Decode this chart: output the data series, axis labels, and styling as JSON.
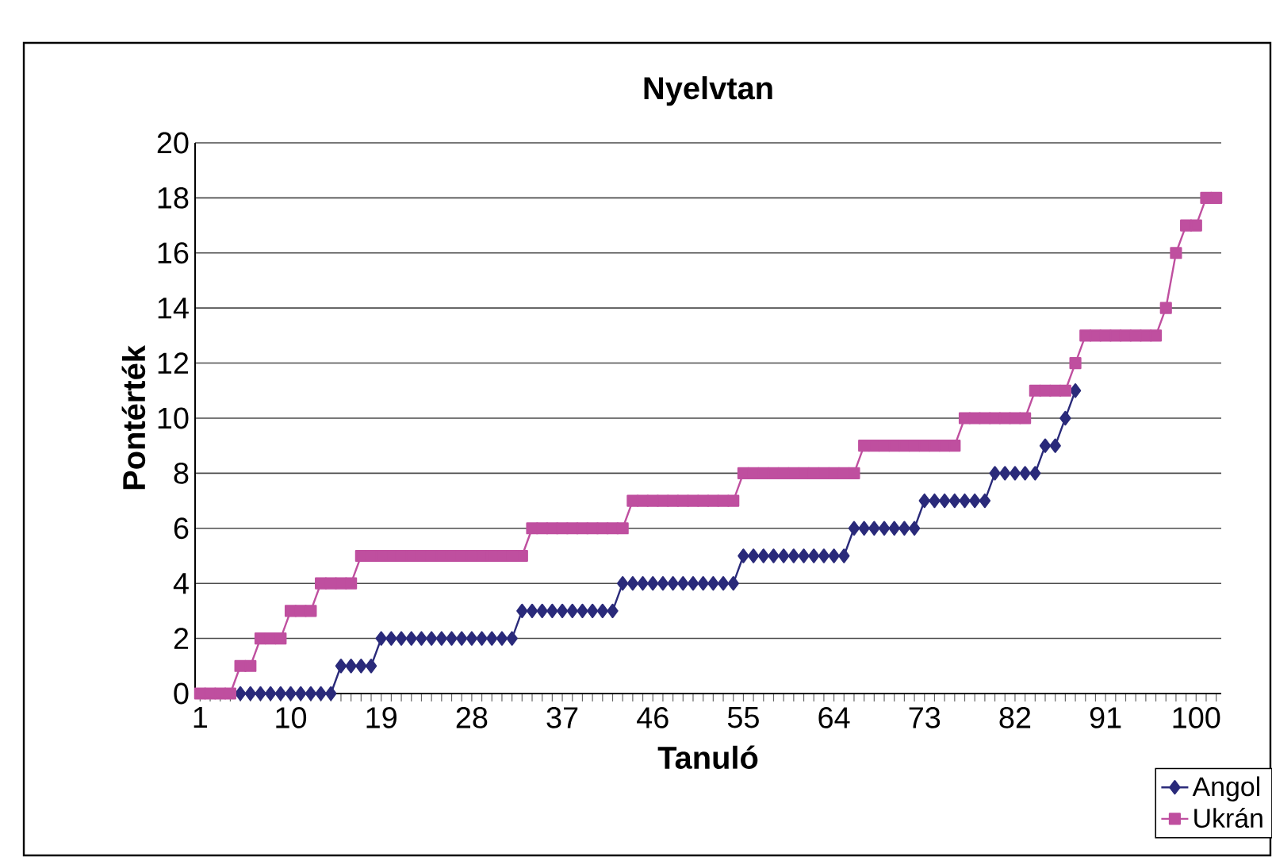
{
  "chart_data": {
    "type": "line",
    "title": "Nyelvtan",
    "xlabel": "Tanuló",
    "ylabel": "Pontérték",
    "categories": [
      "1",
      null,
      null,
      null,
      null,
      null,
      null,
      null,
      null,
      "10",
      null,
      null,
      null,
      null,
      null,
      null,
      null,
      null,
      "19",
      null,
      null,
      null,
      null,
      null,
      null,
      null,
      null,
      "28",
      null,
      null,
      null,
      null,
      null,
      null,
      null,
      null,
      "37",
      null,
      null,
      null,
      null,
      null,
      null,
      null,
      null,
      "46",
      null,
      null,
      null,
      null,
      null,
      null,
      null,
      null,
      "55",
      null,
      null,
      null,
      null,
      null,
      null,
      null,
      null,
      "64",
      null,
      null,
      null,
      null,
      null,
      null,
      null,
      null,
      "73",
      null,
      null,
      null,
      null,
      null,
      null,
      null,
      null,
      "82",
      null,
      null,
      null,
      null,
      null,
      null,
      null,
      null,
      "91",
      null,
      null,
      null,
      null,
      null,
      null,
      null,
      null,
      "100",
      null,
      null
    ],
    "ylim": [
      0,
      20
    ],
    "yticks": [
      0,
      2,
      4,
      6,
      8,
      10,
      12,
      14,
      16,
      18,
      20
    ],
    "grid": "y",
    "legend": "bottom right",
    "line_style": "solid",
    "series": [
      {
        "name": "Angol",
        "color": "#2a2a7a",
        "marker": "diamond",
        "values": [
          null,
          null,
          null,
          null,
          0,
          0,
          0,
          0,
          0,
          0,
          0,
          0,
          0,
          0,
          1,
          1,
          1,
          1,
          2,
          2,
          2,
          2,
          2,
          2,
          2,
          2,
          2,
          2,
          2,
          2,
          2,
          2,
          3,
          3,
          3,
          3,
          3,
          3,
          3,
          3,
          3,
          3,
          4,
          4,
          4,
          4,
          4,
          4,
          4,
          4,
          4,
          4,
          4,
          4,
          5,
          5,
          5,
          5,
          5,
          5,
          5,
          5,
          5,
          5,
          5,
          6,
          6,
          6,
          6,
          6,
          6,
          6,
          7,
          7,
          7,
          7,
          7,
          7,
          7,
          8,
          8,
          8,
          8,
          8,
          9,
          9,
          10,
          11,
          null,
          null,
          null,
          null,
          null,
          null,
          null,
          null,
          null,
          null,
          null,
          null,
          null,
          null
        ]
      },
      {
        "name": "Ukrán",
        "color": "#bf4f9f",
        "marker": "square",
        "values": [
          0,
          0,
          0,
          0,
          1,
          1,
          2,
          2,
          2,
          3,
          3,
          3,
          4,
          4,
          4,
          4,
          5,
          5,
          5,
          5,
          5,
          5,
          5,
          5,
          5,
          5,
          5,
          5,
          5,
          5,
          5,
          5,
          5,
          6,
          6,
          6,
          6,
          6,
          6,
          6,
          6,
          6,
          6,
          7,
          7,
          7,
          7,
          7,
          7,
          7,
          7,
          7,
          7,
          7,
          8,
          8,
          8,
          8,
          8,
          8,
          8,
          8,
          8,
          8,
          8,
          8,
          9,
          9,
          9,
          9,
          9,
          9,
          9,
          9,
          9,
          9,
          10,
          10,
          10,
          10,
          10,
          10,
          10,
          11,
          11,
          11,
          11,
          12,
          13,
          13,
          13,
          13,
          13,
          13,
          13,
          13,
          14,
          16,
          17,
          17,
          18,
          18
        ]
      }
    ]
  }
}
